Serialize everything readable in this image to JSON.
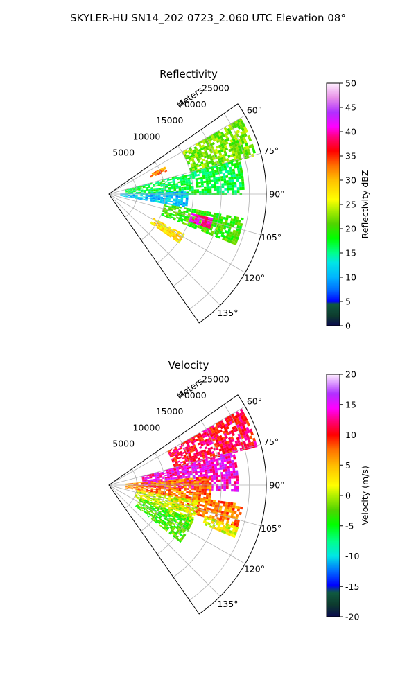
{
  "figure": {
    "suptitle": "SKYLER-HU  SN14_202  0723_2.060 UTC Elevation 08°"
  },
  "chart_data": [
    {
      "type": "heatmap",
      "projection": "polar-sector",
      "title": "Reflectivity",
      "radial_axis_label": "Meters",
      "radial_ticks": [
        "5000",
        "10000",
        "15000",
        "20000",
        "25000"
      ],
      "radial_tick_values": [
        5000,
        10000,
        15000,
        20000,
        25000
      ],
      "rlim": [
        0,
        28000
      ],
      "azimuth_ticks": [
        "60°",
        "75°",
        "90°",
        "105°",
        "120°",
        "135°"
      ],
      "azimuth_tick_values": [
        60,
        75,
        90,
        105,
        120,
        135
      ],
      "azimuth_range": [
        55,
        145
      ],
      "grid": true,
      "colorbar": {
        "label": "Reflectivity dBZ",
        "ticks": [
          "0",
          "5",
          "10",
          "15",
          "20",
          "25",
          "30",
          "35",
          "40",
          "45",
          "50"
        ],
        "range": [
          0,
          50
        ]
      },
      "regions": [
        {
          "az": [
            60,
            75
          ],
          "r": [
            15000,
            27000
          ],
          "value": 22
        },
        {
          "az": [
            75,
            90
          ],
          "r": [
            3000,
            24000
          ],
          "value": 17
        },
        {
          "az": [
            88,
            100
          ],
          "r": [
            2000,
            14000
          ],
          "value": 11
        },
        {
          "az": [
            100,
            112
          ],
          "r": [
            10000,
            24000
          ],
          "value": 20
        },
        {
          "az": [
            103,
            108
          ],
          "r": [
            15000,
            19000
          ],
          "value": 40
        },
        {
          "az": [
            118,
            125
          ],
          "r": [
            9000,
            15000
          ],
          "value": 28
        },
        {
          "az": [
            64,
            68
          ],
          "r": [
            8000,
            11000
          ],
          "value": 32
        }
      ]
    },
    {
      "type": "heatmap",
      "projection": "polar-sector",
      "title": "Velocity",
      "radial_axis_label": "Meters",
      "radial_ticks": [
        "5000",
        "10000",
        "15000",
        "20000",
        "25000"
      ],
      "radial_tick_values": [
        5000,
        10000,
        15000,
        20000,
        25000
      ],
      "rlim": [
        0,
        28000
      ],
      "azimuth_ticks": [
        "60°",
        "75°",
        "90°",
        "105°",
        "120°",
        "135°"
      ],
      "azimuth_tick_values": [
        60,
        75,
        90,
        105,
        120,
        135
      ],
      "azimuth_range": [
        55,
        145
      ],
      "grid": true,
      "colorbar": {
        "label": "Velocity (m/s)",
        "ticks": [
          "-20",
          "-15",
          "-10",
          "-5",
          "0",
          "5",
          "10",
          "15",
          "20"
        ],
        "range": [
          -20,
          20
        ]
      },
      "regions": [
        {
          "az": [
            60,
            75
          ],
          "r": [
            12000,
            27000
          ],
          "value": 11
        },
        {
          "az": [
            75,
            92
          ],
          "r": [
            6000,
            23000
          ],
          "value": 14
        },
        {
          "az": [
            85,
            100
          ],
          "r": [
            3000,
            18000
          ],
          "value": 7
        },
        {
          "az": [
            98,
            108
          ],
          "r": [
            12000,
            24000
          ],
          "value": 7
        },
        {
          "az": [
            100,
            115
          ],
          "r": [
            5000,
            16000
          ],
          "value": 1
        },
        {
          "az": [
            112,
            128
          ],
          "r": [
            6000,
            16000
          ],
          "value": -3
        },
        {
          "az": [
            108,
            112
          ],
          "r": [
            18000,
            24000
          ],
          "value": 2
        }
      ]
    }
  ]
}
